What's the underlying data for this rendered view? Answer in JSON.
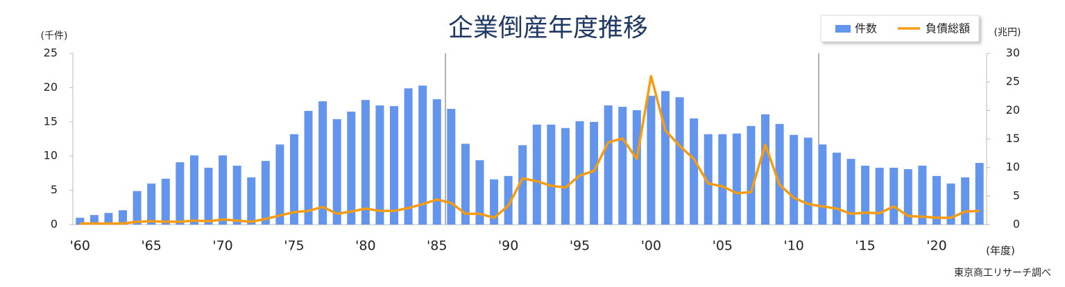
{
  "chart_data": {
    "type": "bar",
    "title": "企業倒産年度推移",
    "y_unit": "(千件)",
    "y2_unit": "(兆円)",
    "x_unit": "(年度)",
    "source": "東京商工リサーチ調べ",
    "categories": [
      "'60",
      null,
      null,
      null,
      null,
      "'65",
      null,
      null,
      null,
      null,
      "'70",
      null,
      null,
      null,
      null,
      "'75",
      null,
      null,
      null,
      null,
      "'80",
      null,
      null,
      null,
      null,
      "'85",
      null,
      null,
      null,
      null,
      "'90",
      null,
      null,
      null,
      null,
      "'95",
      null,
      null,
      null,
      null,
      "'00",
      null,
      null,
      null,
      null,
      "'05",
      null,
      null,
      null,
      null,
      "'10",
      null,
      null,
      null,
      null,
      "'15",
      null,
      null,
      null,
      null,
      "'20",
      null,
      null,
      null
    ],
    "series": [
      {
        "name": "件数",
        "type": "bar",
        "color": "#6495ed",
        "values": [
          1.0,
          1.4,
          1.7,
          2.1,
          4.9,
          6.0,
          6.7,
          9.1,
          10.1,
          8.3,
          10.1,
          8.6,
          6.9,
          9.3,
          11.7,
          13.2,
          16.6,
          18.0,
          15.4,
          16.5,
          18.2,
          17.4,
          17.3,
          19.9,
          20.3,
          18.3,
          16.9,
          11.8,
          9.4,
          6.6,
          7.1,
          11.6,
          14.6,
          14.6,
          14.1,
          15.1,
          15.0,
          17.4,
          17.2,
          16.7,
          18.8,
          19.5,
          18.6,
          15.5,
          13.2,
          13.2,
          13.3,
          14.4,
          16.1,
          14.7,
          13.1,
          12.7,
          11.7,
          10.5,
          9.6,
          8.6,
          8.3,
          8.3,
          8.1,
          8.6,
          7.1,
          6.0,
          6.9,
          9.0
        ]
      },
      {
        "name": "負債総額",
        "type": "line",
        "color": "#f59c12",
        "axis": "y2",
        "values": [
          0.2,
          0.2,
          0.2,
          0.2,
          0.5,
          0.6,
          0.5,
          0.5,
          0.7,
          0.6,
          0.9,
          0.7,
          0.5,
          1.0,
          1.6,
          2.2,
          2.4,
          3.1,
          1.9,
          2.3,
          2.8,
          2.4,
          2.4,
          2.9,
          3.6,
          4.4,
          3.8,
          1.9,
          1.9,
          1.2,
          3.3,
          8.1,
          7.6,
          6.8,
          6.5,
          8.6,
          9.4,
          14.4,
          15.1,
          11.5,
          26.0,
          16.5,
          13.8,
          11.5,
          7.2,
          6.7,
          5.5,
          5.7,
          14.0,
          7.0,
          4.7,
          3.6,
          3.2,
          2.8,
          1.9,
          2.1,
          2.0,
          3.2,
          1.5,
          1.4,
          1.2,
          1.2,
          2.3,
          2.4
        ]
      }
    ],
    "ylim": [
      0,
      25
    ],
    "yticks": [
      0,
      5,
      10,
      15,
      20,
      25
    ],
    "y2lim": [
      0,
      30
    ],
    "y2ticks": [
      0,
      5,
      10,
      15,
      20,
      25,
      30
    ],
    "grid": false,
    "legend": "top-right"
  }
}
